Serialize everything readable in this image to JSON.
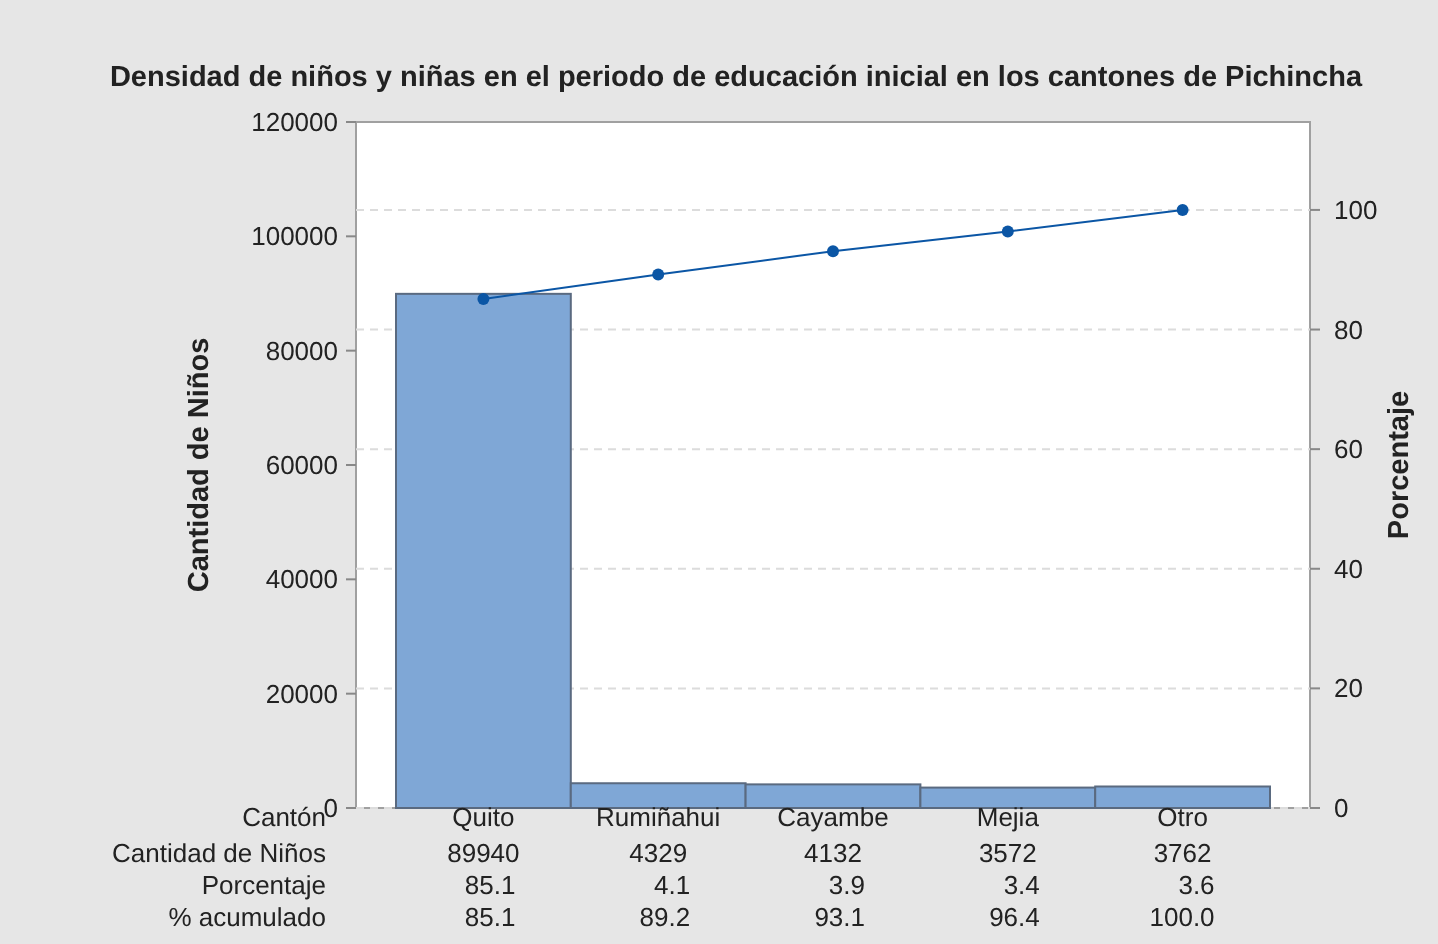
{
  "chart_data": {
    "type": "bar",
    "title": "Densidad de niños y niñas en el periodo de educación inicial en los cantones de Pichincha",
    "xlabel": "Cantón",
    "ylabel": "Cantidad de Niños",
    "y2label": "Porcentaje",
    "categories": [
      "Quito",
      "Rumiñahui",
      "Cayambe",
      "Mejia",
      "Otro"
    ],
    "series": [
      {
        "color": "#7fa7d6",
        "values": [
          89940,
          4329,
          4132,
          3572,
          3762
        ]
      },
      {
        "type": "line",
        "axis": "y2",
        "color": "#0b56a5",
        "values": [
          85.1,
          89.2,
          93.1,
          96.4,
          100.0
        ]
      }
    ],
    "annotations": [
      "Cantidad de Niños",
      "89940",
      "4329",
      "4132",
      "3572",
      "3762",
      "Porcentaje",
      "85.1",
      "4.1",
      "3.9",
      "3.4",
      "3.6",
      "% acumulado",
      "85.1",
      "89.2",
      "93.1",
      "96.4",
      "100.0"
    ],
    "ylim": [
      0,
      120000
    ],
    "yticks": [
      0,
      20000,
      40000,
      60000,
      80000,
      100000,
      120000
    ],
    "y2lim": [
      0,
      114.7
    ],
    "y2ticks": [
      0,
      20,
      40,
      60,
      80,
      100
    ],
    "grid": true,
    "marker": "circle",
    "line_style": "solid"
  }
}
